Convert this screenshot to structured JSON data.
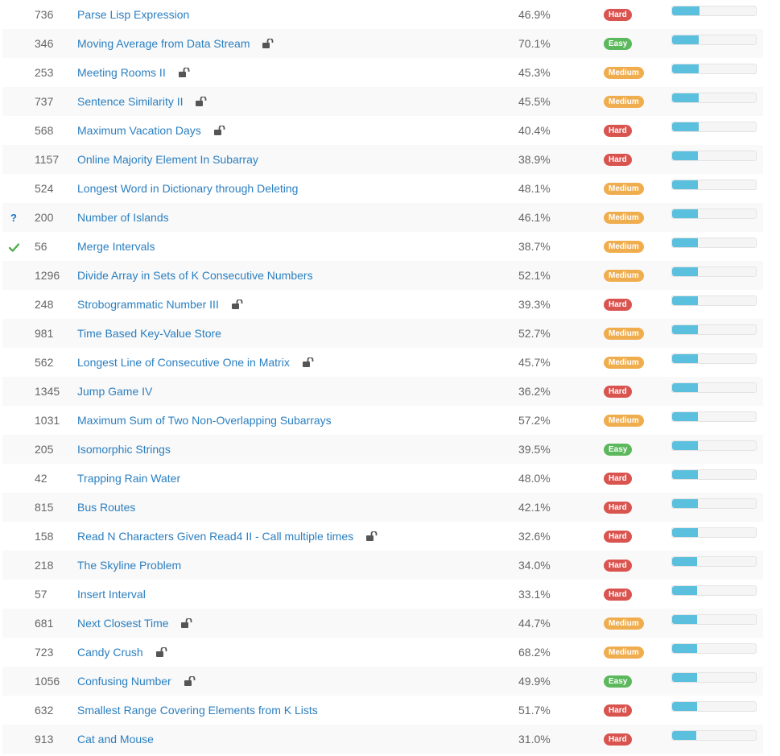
{
  "colors": {
    "link": "#2b7fc0",
    "easy": "#5cb85c",
    "medium": "#f0ad4e",
    "hard": "#d9534f",
    "frequency_fill": "#5bc0de",
    "accepted_check": "#4cae4c",
    "attempted_mark": "#1a73c2"
  },
  "icons": {
    "premium_lock": "unlock-icon",
    "accepted": "checkmark-icon",
    "attempted": "question-mark-icon"
  },
  "problems": [
    {
      "status": "",
      "id": "736",
      "title": "Parse Lisp Expression",
      "locked": false,
      "acceptance": "46.9%",
      "difficulty": "Hard",
      "frequency": 0.33
    },
    {
      "status": "",
      "id": "346",
      "title": "Moving Average from Data Stream",
      "locked": true,
      "acceptance": "70.1%",
      "difficulty": "Easy",
      "frequency": 0.32
    },
    {
      "status": "",
      "id": "253",
      "title": "Meeting Rooms II",
      "locked": true,
      "acceptance": "45.3%",
      "difficulty": "Medium",
      "frequency": 0.32
    },
    {
      "status": "",
      "id": "737",
      "title": "Sentence Similarity II",
      "locked": true,
      "acceptance": "45.5%",
      "difficulty": "Medium",
      "frequency": 0.32
    },
    {
      "status": "",
      "id": "568",
      "title": "Maximum Vacation Days",
      "locked": true,
      "acceptance": "40.4%",
      "difficulty": "Hard",
      "frequency": 0.32
    },
    {
      "status": "",
      "id": "1157",
      "title": "Online Majority Element In Subarray",
      "locked": false,
      "acceptance": "38.9%",
      "difficulty": "Hard",
      "frequency": 0.31
    },
    {
      "status": "",
      "id": "524",
      "title": "Longest Word in Dictionary through Deleting",
      "locked": false,
      "acceptance": "48.1%",
      "difficulty": "Medium",
      "frequency": 0.31
    },
    {
      "status": "attempted",
      "id": "200",
      "title": "Number of Islands",
      "locked": false,
      "acceptance": "46.1%",
      "difficulty": "Medium",
      "frequency": 0.31
    },
    {
      "status": "accepted",
      "id": "56",
      "title": "Merge Intervals",
      "locked": false,
      "acceptance": "38.7%",
      "difficulty": "Medium",
      "frequency": 0.31
    },
    {
      "status": "",
      "id": "1296",
      "title": "Divide Array in Sets of K Consecutive Numbers",
      "locked": false,
      "acceptance": "52.1%",
      "difficulty": "Medium",
      "frequency": 0.31
    },
    {
      "status": "",
      "id": "248",
      "title": "Strobogrammatic Number III",
      "locked": true,
      "acceptance": "39.3%",
      "difficulty": "Hard",
      "frequency": 0.31
    },
    {
      "status": "",
      "id": "981",
      "title": "Time Based Key-Value Store",
      "locked": false,
      "acceptance": "52.7%",
      "difficulty": "Medium",
      "frequency": 0.31
    },
    {
      "status": "",
      "id": "562",
      "title": "Longest Line of Consecutive One in Matrix",
      "locked": true,
      "acceptance": "45.7%",
      "difficulty": "Medium",
      "frequency": 0.31
    },
    {
      "status": "",
      "id": "1345",
      "title": "Jump Game IV",
      "locked": false,
      "acceptance": "36.2%",
      "difficulty": "Hard",
      "frequency": 0.31
    },
    {
      "status": "",
      "id": "1031",
      "title": "Maximum Sum of Two Non-Overlapping Subarrays",
      "locked": false,
      "acceptance": "57.2%",
      "difficulty": "Medium",
      "frequency": 0.31
    },
    {
      "status": "",
      "id": "205",
      "title": "Isomorphic Strings",
      "locked": false,
      "acceptance": "39.5%",
      "difficulty": "Easy",
      "frequency": 0.31
    },
    {
      "status": "",
      "id": "42",
      "title": "Trapping Rain Water",
      "locked": false,
      "acceptance": "48.0%",
      "difficulty": "Hard",
      "frequency": 0.31
    },
    {
      "status": "",
      "id": "815",
      "title": "Bus Routes",
      "locked": false,
      "acceptance": "42.1%",
      "difficulty": "Hard",
      "frequency": 0.31
    },
    {
      "status": "",
      "id": "158",
      "title": "Read N Characters Given Read4 II - Call multiple times",
      "locked": true,
      "acceptance": "32.6%",
      "difficulty": "Hard",
      "frequency": 0.31
    },
    {
      "status": "",
      "id": "218",
      "title": "The Skyline Problem",
      "locked": false,
      "acceptance": "34.0%",
      "difficulty": "Hard",
      "frequency": 0.3
    },
    {
      "status": "",
      "id": "57",
      "title": "Insert Interval",
      "locked": false,
      "acceptance": "33.1%",
      "difficulty": "Hard",
      "frequency": 0.3
    },
    {
      "status": "",
      "id": "681",
      "title": "Next Closest Time",
      "locked": true,
      "acceptance": "44.7%",
      "difficulty": "Medium",
      "frequency": 0.3
    },
    {
      "status": "",
      "id": "723",
      "title": "Candy Crush",
      "locked": true,
      "acceptance": "68.2%",
      "difficulty": "Medium",
      "frequency": 0.3
    },
    {
      "status": "",
      "id": "1056",
      "title": "Confusing Number",
      "locked": true,
      "acceptance": "49.9%",
      "difficulty": "Easy",
      "frequency": 0.3
    },
    {
      "status": "",
      "id": "632",
      "title": "Smallest Range Covering Elements from K Lists",
      "locked": false,
      "acceptance": "51.7%",
      "difficulty": "Hard",
      "frequency": 0.3
    },
    {
      "status": "",
      "id": "913",
      "title": "Cat and Mouse",
      "locked": false,
      "acceptance": "31.0%",
      "difficulty": "Hard",
      "frequency": 0.29
    }
  ]
}
